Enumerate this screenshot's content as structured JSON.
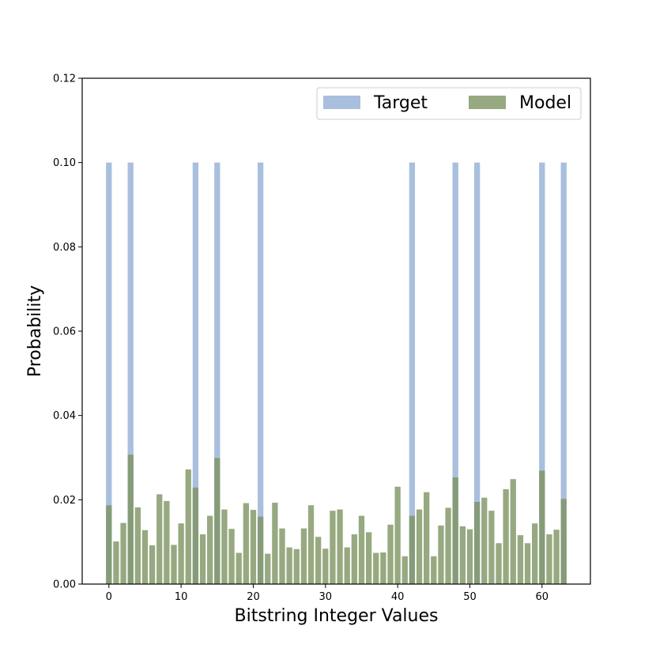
{
  "chart_data": {
    "type": "bar",
    "xlabel": "Bitstring Integer Values",
    "ylabel": "Probability",
    "xlim": [
      -3.7,
      66.7
    ],
    "ylim": [
      0,
      0.12
    ],
    "xticks": [
      0,
      10,
      20,
      30,
      40,
      50,
      60
    ],
    "yticks": [
      0.0,
      0.02,
      0.04,
      0.06,
      0.08,
      0.1,
      0.12
    ],
    "ytick_labels": [
      "0.00",
      "0.02",
      "0.04",
      "0.06",
      "0.08",
      "0.10",
      "0.12"
    ],
    "xtick_labels": [
      "0",
      "10",
      "20",
      "30",
      "40",
      "50",
      "60"
    ],
    "grid": false,
    "legend_position": "top-right",
    "x": [
      0,
      1,
      2,
      3,
      4,
      5,
      6,
      7,
      8,
      9,
      10,
      11,
      12,
      13,
      14,
      15,
      16,
      17,
      18,
      19,
      20,
      21,
      22,
      23,
      24,
      25,
      26,
      27,
      28,
      29,
      30,
      31,
      32,
      33,
      34,
      35,
      36,
      37,
      38,
      39,
      40,
      41,
      42,
      43,
      44,
      45,
      46,
      47,
      48,
      49,
      50,
      51,
      52,
      53,
      54,
      55,
      56,
      57,
      58,
      59,
      60,
      61,
      62,
      63
    ],
    "series": [
      {
        "name": "Target",
        "color": "#a9bfdd",
        "values": [
          0.1,
          0,
          0,
          0.1,
          0,
          0,
          0,
          0,
          0,
          0,
          0,
          0,
          0.1,
          0,
          0,
          0.1,
          0,
          0,
          0,
          0,
          0,
          0.1,
          0,
          0,
          0,
          0,
          0,
          0,
          0,
          0,
          0,
          0,
          0,
          0,
          0,
          0,
          0,
          0,
          0,
          0,
          0,
          0,
          0.1,
          0,
          0,
          0,
          0,
          0,
          0.1,
          0,
          0,
          0.1,
          0,
          0,
          0,
          0,
          0,
          0,
          0,
          0,
          0.1,
          0,
          0,
          0.1
        ]
      },
      {
        "name": "Model",
        "color": "#7d9460",
        "values": [
          0.0187,
          0.0101,
          0.0145,
          0.0307,
          0.0182,
          0.0128,
          0.0092,
          0.0213,
          0.0197,
          0.0093,
          0.0144,
          0.0272,
          0.0229,
          0.0118,
          0.0162,
          0.0299,
          0.0177,
          0.0131,
          0.0074,
          0.0192,
          0.0176,
          0.016,
          0.0072,
          0.0193,
          0.0132,
          0.0087,
          0.0083,
          0.0132,
          0.0187,
          0.0112,
          0.0084,
          0.0174,
          0.0177,
          0.0087,
          0.0118,
          0.0162,
          0.0123,
          0.0074,
          0.0075,
          0.0141,
          0.0231,
          0.0066,
          0.0162,
          0.0177,
          0.0218,
          0.0066,
          0.0139,
          0.0181,
          0.0253,
          0.0137,
          0.013,
          0.0195,
          0.0205,
          0.0174,
          0.0097,
          0.0225,
          0.0249,
          0.0116,
          0.0097,
          0.0144,
          0.0269,
          0.0118,
          0.0129,
          0.0202
        ]
      }
    ]
  }
}
